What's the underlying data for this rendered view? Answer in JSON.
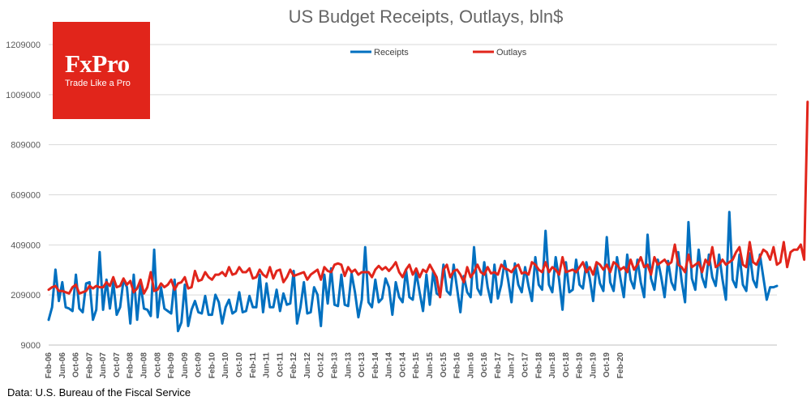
{
  "logo": {
    "name": "FxPro",
    "tagline": "Trade Like a Pro",
    "color": "#e1251b"
  },
  "source": "Data: U.S. Bureau of the Fiscal Service",
  "chart_data": {
    "type": "line",
    "title": "US Budget Receipts, Outlays, bln$",
    "xlabel": "",
    "ylabel": "",
    "ylim": [
      9000,
      1209000
    ],
    "yticks": [
      9000,
      209000,
      409000,
      609000,
      809000,
      1009000,
      1209000
    ],
    "grid": true,
    "legend": "top-center",
    "x_start": "Feb-06",
    "x_tick_labels": [
      "Feb-06",
      "Jun-06",
      "Oct-06",
      "Feb-07",
      "Jun-07",
      "Oct-07",
      "Feb-08",
      "Jun-08",
      "Oct-08",
      "Feb-09",
      "Jun-09",
      "Oct-09",
      "Feb-10",
      "Jun-10",
      "Oct-10",
      "Feb-11",
      "Jun-11",
      "Oct-11",
      "Feb-12",
      "Jun-12",
      "Oct-12",
      "Feb-13",
      "Jun-13",
      "Oct-13",
      "Feb-14",
      "Jun-14",
      "Oct-14",
      "Feb-15",
      "Jun-15",
      "Oct-15",
      "Feb-16",
      "Jun-16",
      "Oct-16",
      "Feb-17",
      "Jun-17",
      "Oct-17",
      "Feb-18",
      "Jun-18",
      "Oct-18",
      "Feb-19",
      "Jun-19",
      "Oct-19",
      "Feb-20"
    ],
    "series": [
      {
        "name": "Receipts",
        "color": "#0070c0",
        "values": [
          110000,
          160000,
          310000,
          185000,
          260000,
          160000,
          155000,
          145000,
          290000,
          155000,
          140000,
          255000,
          260000,
          110000,
          150000,
          380000,
          150000,
          270000,
          155000,
          260000,
          130000,
          160000,
          270000,
          240000,
          95000,
          290000,
          110000,
          255000,
          155000,
          150000,
          125000,
          390000,
          120000,
          240000,
          155000,
          145000,
          135000,
          270000,
          65000,
          100000,
          250000,
          85000,
          150000,
          185000,
          140000,
          135000,
          205000,
          130000,
          130000,
          210000,
          180000,
          95000,
          160000,
          190000,
          135000,
          145000,
          220000,
          140000,
          145000,
          205000,
          160000,
          160000,
          290000,
          140000,
          255000,
          160000,
          160000,
          230000,
          145000,
          215000,
          170000,
          175000,
          305000,
          95000,
          160000,
          260000,
          135000,
          140000,
          240000,
          210000,
          85000,
          290000,
          175000,
          315000,
          170000,
          165000,
          290000,
          170000,
          165000,
          295000,
          220000,
          120000,
          190000,
          400000,
          180000,
          160000,
          270000,
          180000,
          195000,
          275000,
          240000,
          130000,
          260000,
          200000,
          180000,
          310000,
          200000,
          190000,
          300000,
          220000,
          145000,
          290000,
          170000,
          305000,
          215000,
          205000,
          330000,
          225000,
          210000,
          330000,
          235000,
          140000,
          285000,
          220000,
          200000,
          400000,
          235000,
          210000,
          340000,
          240000,
          180000,
          330000,
          195000,
          250000,
          345000,
          270000,
          180000,
          335000,
          250000,
          220000,
          320000,
          245000,
          185000,
          360000,
          250000,
          230000,
          465000,
          250000,
          220000,
          360000,
          270000,
          150000,
          340000,
          220000,
          230000,
          350000,
          250000,
          235000,
          340000,
          275000,
          185000,
          330000,
          255000,
          225000,
          440000,
          260000,
          225000,
          360000,
          275000,
          200000,
          370000,
          270000,
          235000,
          350000,
          260000,
          200000,
          450000,
          275000,
          230000,
          350000,
          280000,
          200000,
          345000,
          260000,
          230000,
          380000,
          265000,
          180000,
          500000,
          275000,
          230000,
          390000,
          280000,
          240000,
          370000,
          280000,
          245000,
          370000,
          270000,
          190000,
          540000,
          270000,
          240000,
          370000,
          250000,
          225000,
          375000,
          270000,
          240000,
          370000,
          280000,
          190000,
          240000,
          240000,
          245000
        ]
      },
      {
        "name": "Outlays",
        "color": "#e1251b",
        "values": [
          230000,
          240000,
          245000,
          225000,
          225000,
          220000,
          215000,
          240000,
          250000,
          215000,
          220000,
          225000,
          245000,
          235000,
          245000,
          240000,
          240000,
          260000,
          245000,
          280000,
          240000,
          245000,
          275000,
          250000,
          265000,
          220000,
          235000,
          270000,
          215000,
          240000,
          300000,
          225000,
          230000,
          255000,
          240000,
          250000,
          270000,
          230000,
          255000,
          260000,
          280000,
          235000,
          240000,
          305000,
          265000,
          270000,
          300000,
          280000,
          270000,
          290000,
          290000,
          300000,
          285000,
          320000,
          290000,
          295000,
          320000,
          300000,
          300000,
          315000,
          275000,
          280000,
          310000,
          290000,
          280000,
          320000,
          275000,
          305000,
          310000,
          260000,
          280000,
          310000,
          285000,
          290000,
          295000,
          300000,
          270000,
          290000,
          300000,
          310000,
          270000,
          320000,
          305000,
          300000,
          330000,
          335000,
          330000,
          285000,
          320000,
          300000,
          310000,
          290000,
          300000,
          300000,
          300000,
          280000,
          310000,
          325000,
          310000,
          320000,
          305000,
          320000,
          340000,
          300000,
          280000,
          310000,
          330000,
          290000,
          315000,
          280000,
          310000,
          300000,
          330000,
          305000,
          280000,
          200000,
          310000,
          330000,
          280000,
          305000,
          310000,
          290000,
          260000,
          320000,
          280000,
          300000,
          330000,
          300000,
          290000,
          320000,
          295000,
          300000,
          290000,
          330000,
          315000,
          310000,
          300000,
          320000,
          330000,
          295000,
          300000,
          290000,
          340000,
          330000,
          310000,
          300000,
          340000,
          300000,
          320000,
          310000,
          290000,
          360000,
          300000,
          305000,
          310000,
          300000,
          320000,
          340000,
          300000,
          320000,
          290000,
          340000,
          330000,
          310000,
          330000,
          300000,
          340000,
          330000,
          310000,
          320000,
          300000,
          350000,
          310000,
          330000,
          360000,
          320000,
          330000,
          290000,
          360000,
          330000,
          340000,
          350000,
          330000,
          340000,
          410000,
          330000,
          320000,
          300000,
          370000,
          320000,
          330000,
          340000,
          300000,
          350000,
          330000,
          400000,
          320000,
          330000,
          350000,
          330000,
          340000,
          350000,
          380000,
          400000,
          330000,
          320000,
          420000,
          340000,
          330000,
          360000,
          390000,
          380000,
          350000,
          400000,
          330000,
          340000,
          420000,
          320000,
          380000,
          390000,
          390000,
          410000,
          350000,
          980000
        ]
      }
    ]
  }
}
